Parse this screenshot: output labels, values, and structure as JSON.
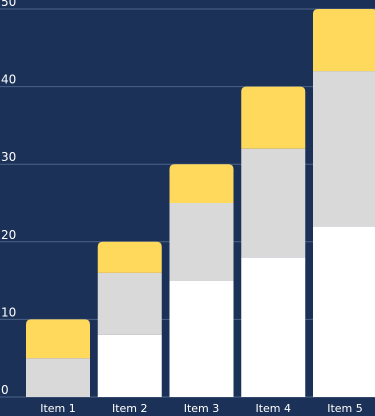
{
  "colors": {
    "background": "#1b3157",
    "grid": "#4d6286",
    "axis_text": "#ffffff",
    "bottom_segment": "#ffffff",
    "middle_segment": "#d9d9d9",
    "top_segment": "#ffd95c"
  },
  "chart_data": {
    "type": "bar",
    "stacked": true,
    "categories": [
      "Item 1",
      "Item 2",
      "Item 3",
      "Item 4",
      "Item 5"
    ],
    "series": [
      {
        "values": [
          0,
          8,
          15,
          18,
          22
        ]
      },
      {
        "values": [
          5,
          8,
          10,
          14,
          20
        ]
      },
      {
        "values": [
          5,
          4,
          5,
          8,
          8
        ]
      }
    ],
    "y_ticks": [
      "0",
      "10",
      "20",
      "30",
      "40",
      "50"
    ],
    "ylim": [
      0,
      50
    ],
    "grid": true,
    "legend": "none",
    "title": "",
    "xlabel": "",
    "ylabel": ""
  }
}
